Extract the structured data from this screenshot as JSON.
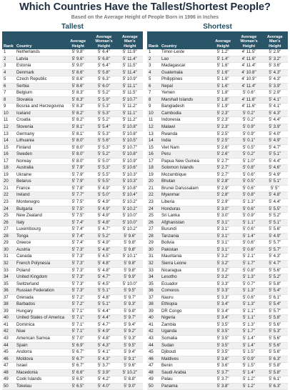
{
  "header": {
    "title": "Which Countries Have the Tallest/Shortest People?",
    "subtitle": "Based on the Average Height of People Born in 1996 in Inches"
  },
  "tables": [
    {
      "title": "Tallest",
      "columns": [
        "Rank",
        "Country",
        "Average Height",
        "Average Woman's Height",
        "Average Man's Height"
      ],
      "rows": [
        [
          1,
          "Netherlands",
          "5' 9.8\"",
          "5' 6.4\"",
          "5' 11.9\""
        ],
        [
          2,
          "Latvia",
          "5' 9.6\"",
          "5' 6.8\"",
          "5' 11.4\""
        ],
        [
          3,
          "Estonia",
          "5' 9.0\"",
          "5' 6.4\"",
          "5' 11.5\""
        ],
        [
          4,
          "Denmark",
          "5' 8.6\"",
          "5' 5.8\"",
          "5' 11.4\""
        ],
        [
          5,
          "Czech Republic",
          "5' 8.6\"",
          "5' 6.3\"",
          "5' 10.9\""
        ],
        [
          6,
          "Serbia",
          "5' 8.6\"",
          "5' 6.0\"",
          "5' 11.1\""
        ],
        [
          7,
          "Belgium",
          "5' 8.3\"",
          "5' 5.2\"",
          "5' 11.5\""
        ],
        [
          8,
          "Slovakia",
          "5' 8.3\"",
          "5' 5.9\"",
          "5' 10.7\""
        ],
        [
          9,
          "Bosnia and Herzegovina",
          "5' 8.3\"",
          "5' 5.3\"",
          "5' 11.2\""
        ],
        [
          10,
          "Iceland",
          "5' 8.2\"",
          "5' 5.3\"",
          "5' 11.1\""
        ],
        [
          11,
          "Croatia",
          "5' 8.2\"",
          "5' 5.2\"",
          "5' 11.2\""
        ],
        [
          12,
          "Slovenia",
          "5' 8.1\"",
          "5' 5.4\"",
          "5' 10.8\""
        ],
        [
          13,
          "Germany",
          "5' 8.1\"",
          "5' 5.3\"",
          "5' 10.8\""
        ],
        [
          14,
          "Lithuania",
          "5' 8.0\"",
          "5' 5.6\"",
          "5' 10.5\""
        ],
        [
          15,
          "Finland",
          "5' 8.0\"",
          "5' 5.3\"",
          "5' 10.7\""
        ],
        [
          16,
          "Sweden",
          "5' 8.0\"",
          "5' 5.2\"",
          "5' 10.8\""
        ],
        [
          17,
          "Norway",
          "5' 8.0\"",
          "5' 5.0\"",
          "5' 10.9\""
        ],
        [
          18,
          "Australia",
          "5' 7.9\"",
          "5' 5.3\"",
          "5' 10.6\""
        ],
        [
          19,
          "Ukraine",
          "5' 7.9\"",
          "5' 5.5\"",
          "5' 10.3\""
        ],
        [
          20,
          "Belarus",
          "5' 7.9\"",
          "5' 5.5\"",
          "5' 10.3\""
        ],
        [
          21,
          "France",
          "5' 7.8\"",
          "5' 4.9\"",
          "5' 10.8\""
        ],
        [
          22,
          "Ireland",
          "5' 7.7\"",
          "5' 5.0\"",
          "5' 10.4\""
        ],
        [
          23,
          "Montenegro",
          "5' 7.5\"",
          "5' 4.9\"",
          "5' 10.2\""
        ],
        [
          24,
          "Bulgaria",
          "5' 7.5\"",
          "5' 4.9\"",
          "5' 10.2\""
        ],
        [
          25,
          "New Zealand",
          "5' 7.5\"",
          "5' 4.9\"",
          "5' 10.0\""
        ],
        [
          26,
          "Italy",
          "5' 7.4\"",
          "5' 4.8\"",
          "5' 10.0\""
        ],
        [
          27,
          "Luxembourg",
          "5' 7.4\"",
          "5' 4.7\"",
          "5' 10.2\""
        ],
        [
          28,
          "Tonga",
          "5' 7.4\"",
          "5' 5.2\"",
          "5' 9.6\""
        ],
        [
          29,
          "Greece",
          "5' 7.4\"",
          "5' 4.9\"",
          "5' 9.8\""
        ],
        [
          30,
          "Austria",
          "5' 7.3\"",
          "5' 4.8\"",
          "5' 9.8\""
        ],
        [
          31,
          "Canada",
          "5' 7.3\"",
          "5' 4.5\"",
          "5' 10.1\""
        ],
        [
          32,
          "French Polynesia",
          "5' 7.3\"",
          "5' 4.8\"",
          "5' 9.8\""
        ],
        [
          33,
          "Poland",
          "5' 7.3\"",
          "5' 4.8\"",
          "5' 9.8\""
        ],
        [
          34,
          "United Kingdom",
          "5' 7.3\"",
          "5' 4.7\"",
          "5' 9.9\""
        ],
        [
          35,
          "Switzerland",
          "5' 7.3\"",
          "5' 4.5\"",
          "5' 10.0\""
        ],
        [
          36,
          "Russian Federation",
          "5' 7.3\"",
          "5' 5.1\"",
          "5' 9.5\""
        ],
        [
          37,
          "Grenada",
          "5' 7.2\"",
          "5' 4.8\"",
          "5' 9.7\""
        ],
        [
          38,
          "Barbados",
          "5' 7.2\"",
          "5' 5.1\"",
          "5' 9.3\""
        ],
        [
          39,
          "Hungary",
          "5' 7.1\"",
          "5' 4.4\"",
          "5' 9.8\""
        ],
        [
          40,
          "United States of America",
          "5' 7.1\"",
          "5' 4.4\"",
          "5' 9.7\""
        ],
        [
          41,
          "Dominica",
          "5' 7.1\"",
          "5' 4.7\"",
          "5' 9.4\""
        ],
        [
          42,
          "Niue",
          "5' 7.1\"",
          "5' 4.9\"",
          "5' 9.2\""
        ],
        [
          43,
          "American Samoa",
          "5' 7.0\"",
          "5' 4.8\"",
          "5' 9.3\""
        ],
        [
          44,
          "Spain",
          "5' 6.9\"",
          "5' 4.3\"",
          "5' 9.5\""
        ],
        [
          45,
          "Andorra",
          "5' 6.7\"",
          "5' 4.1\"",
          "5' 9.4\""
        ],
        [
          46,
          "Moldova",
          "5' 6.7\"",
          "5' 4.3\"",
          "5' 9.1\""
        ],
        [
          47,
          "Israel",
          "5' 6.7\"",
          "5' 3.7\"",
          "5' 9.6\""
        ],
        [
          48,
          "Macedonia",
          "5' 6.6\"",
          "5' 3.9\"",
          "5' 10.2\""
        ],
        [
          49,
          "Cook Islands",
          "5' 6.5\"",
          "5' 4.2\"",
          "5' 8.8\""
        ],
        [
          50,
          "Tokelau",
          "5' 6.5\"",
          "5' 4.0\"",
          "5' 9.0\""
        ]
      ]
    },
    {
      "title": "Shortest",
      "columns": [
        "Rank",
        "Country",
        "Average Height",
        "Average Woman's Height",
        "Average Man's Height"
      ],
      "rows": [
        [
          1,
          "Timor-Leste",
          "5' 1.2\"",
          "4' 11.5\"",
          "5' 2.9\""
        ],
        [
          2,
          "Lao",
          "5' 1.4\"",
          "4' 11.6\"",
          "5' 3.2\""
        ],
        [
          3,
          "Madagascar",
          "5' 1.6\"",
          "4' 11.4\"",
          "5' 3.6\""
        ],
        [
          4,
          "Guatemala",
          "5' 1.6\"",
          "4' 10.8\"",
          "5' 4.3\""
        ],
        [
          5,
          "Philippines",
          "5' 1.6\"",
          "4' 10.9\"",
          "5' 4.3\""
        ],
        [
          6,
          "Nepal",
          "5' 1.6\"",
          "4' 11.4\"",
          "5' 3.9\""
        ],
        [
          7,
          "Yemen",
          "5' 1.8\"",
          "5' 0.6\"",
          "5' 2.9\""
        ],
        [
          8,
          "Marshall Islands",
          "5' 1.8\"",
          "4' 11.6\"",
          "5' 4.1\""
        ],
        [
          9,
          "Bangladesh",
          "5' 1.9\"",
          "4' 11.6\"",
          "5' 4.1\""
        ],
        [
          10,
          "Cambodia",
          "5' 2.3\"",
          "5' 0.2\"",
          "5' 4.3\""
        ],
        [
          11,
          "Indonesia",
          "5' 2.3\"",
          "5' 0.2\"",
          "5' 4.4\""
        ],
        [
          12,
          "Malawi",
          "5' 2.3\"",
          "5' 0.9\"",
          "5' 3.9\""
        ],
        [
          13,
          "Rwanda",
          "5' 2.5\"",
          "5' 0.9\"",
          "5' 4.0\""
        ],
        [
          14,
          "India",
          "5' 2.5\"",
          "5' 0.1\"",
          "5' 4.9\""
        ],
        [
          15,
          "Viet Nam",
          "5' 2.6\"",
          "5' 0.5\"",
          "5' 4.7\""
        ],
        [
          16,
          "Peru",
          "5' 2.6\"",
          "5' 0.2\"",
          "5' 5.1\""
        ],
        [
          17,
          "Papua New Guinea",
          "5' 2.7\"",
          "5' 1.0\"",
          "5' 4.4\""
        ],
        [
          18,
          "Solomon Islands",
          "5' 2.7\"",
          "5' 0.8\"",
          "5' 4.6\""
        ],
        [
          19,
          "Mozambique",
          "5' 2.7\"",
          "5' 0.6\"",
          "5' 4.9\""
        ],
        [
          20,
          "Bhutan",
          "5' 2.8\"",
          "5' 0.5\"",
          "5' 5.1\""
        ],
        [
          21,
          "Brunei Darussalam",
          "5' 2.9\"",
          "5' 0.6\"",
          "5' 5\""
        ],
        [
          22,
          "Myanmar",
          "5' 2.8\"",
          "5' 0.8\"",
          "5' 4.8\""
        ],
        [
          23,
          "Liberia",
          "5' 2.9\"",
          "5' 1.3\"",
          "5' 4.4\""
        ],
        [
          24,
          "Honduras",
          "5' 3.0\"",
          "5' 0.6\"",
          "5' 5.5\""
        ],
        [
          25,
          "Sri Lanka",
          "5' 3.0\"",
          "5' 0.9\"",
          "5' 5.2\""
        ],
        [
          26,
          "Afghanistan",
          "5' 3.1\"",
          "5' 1.1\"",
          "5' 5.1\""
        ],
        [
          27,
          "Burundi",
          "5' 3.1\"",
          "5' 0.6\"",
          "5' 5.6\""
        ],
        [
          28,
          "Tanzania",
          "5' 3.1\"",
          "5' 1.4\"",
          "5' 4.9\""
        ],
        [
          29,
          "Bolivia",
          "5' 3.1\"",
          "5' 0.6\"",
          "5' 5.7\""
        ],
        [
          30,
          "Pakistan",
          "5' 3.1\"",
          "5' 0.6\"",
          "5' 5.7\""
        ],
        [
          31,
          "Mauritania",
          "5' 3.2\"",
          "5' 2.1\"",
          "5' 4.3\""
        ],
        [
          32,
          "Sierra Leone",
          "5' 3.2\"",
          "5' 1.7\"",
          "5' 4.7\""
        ],
        [
          33,
          "Nicaragua",
          "5' 3.2\"",
          "5' 0.8\"",
          "5' 5.6\""
        ],
        [
          34,
          "Lesotho",
          "5' 3.2\"",
          "5' 1.3\"",
          "5' 5.2\""
        ],
        [
          35,
          "Ecuador",
          "5' 3.3\"",
          "5' 0.7\"",
          "5' 5.8\""
        ],
        [
          36,
          "Comoros",
          "5' 3.3\"",
          "5' 1.3\"",
          "5' 5.4\""
        ],
        [
          37,
          "Nauru",
          "5' 3.3\"",
          "5' 0.6\"",
          "5' 6.1\""
        ],
        [
          38,
          "Ethiopia",
          "5' 3.4\"",
          "5' 1.3\"",
          "5' 5.4\""
        ],
        [
          39,
          "DR Congo",
          "5' 3.4\"",
          "5' 1.1\"",
          "5' 5.7\""
        ],
        [
          40,
          "Nigeria",
          "5' 3.4\"",
          "5' 1.1\"",
          "5' 5.8\""
        ],
        [
          41,
          "Zambia",
          "5' 3.5\"",
          "5' 1.3\"",
          "5' 5.6\""
        ],
        [
          42,
          "Uganda",
          "5' 3.5\"",
          "5' 1.7\"",
          "5' 5.3\""
        ],
        [
          43,
          "Somalia",
          "5' 3.5\"",
          "5' 1.4\"",
          "5' 5.6\""
        ],
        [
          44,
          "Sudan",
          "5' 3.5\"",
          "5' 1.4\"",
          "5' 5.6\""
        ],
        [
          45,
          "Djibouti",
          "5' 3.5\"",
          "5' 1.5\"",
          "5' 5.6\""
        ],
        [
          46,
          "Maldives",
          "5' 3.6\"",
          "5' 0.9\"",
          "5' 6.3\""
        ],
        [
          47,
          "Benin",
          "5' 3.6\"",
          "5' 1.5\"",
          "5' 5.8\""
        ],
        [
          48,
          "Saudi Arabia",
          "5' 3.7\"",
          "5' 1.4\"",
          "5' 5.8\""
        ],
        [
          49,
          "Palau",
          "5' 3.7\"",
          "5' 1.2\"",
          "5' 6.1\""
        ],
        [
          50,
          "Panama",
          "5' 3.8\"",
          "5' 1.2\"",
          "5' 6.3\""
        ]
      ]
    }
  ]
}
